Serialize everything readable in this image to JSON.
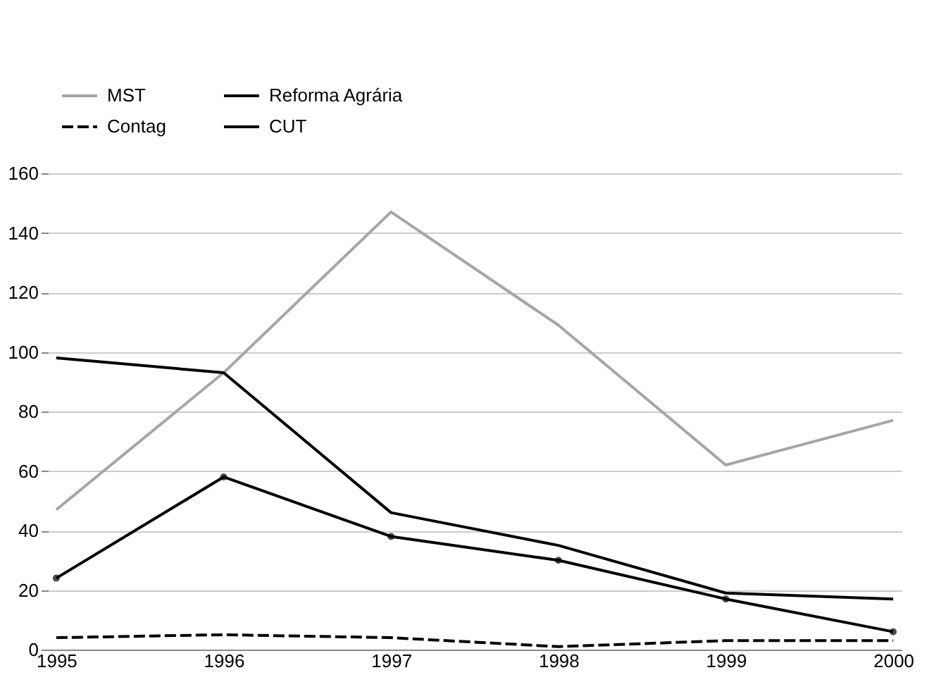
{
  "chart_data": {
    "type": "line",
    "categories": [
      "1995",
      "1996",
      "1997",
      "1998",
      "1999",
      "2000"
    ],
    "ylim": [
      0,
      160
    ],
    "yticks": [
      0,
      20,
      40,
      60,
      80,
      100,
      120,
      140,
      160
    ],
    "grid": "y",
    "legend": "top",
    "series": [
      {
        "name": "MST",
        "color": "#a6a6a6",
        "line_style": "solid",
        "marker": "none",
        "values": [
          47,
          93,
          147,
          109,
          62,
          77
        ]
      },
      {
        "name": "Reforma Agrária",
        "color": "#000000",
        "line_style": "solid",
        "marker": "circle",
        "values": [
          24,
          58,
          38,
          30,
          17,
          6
        ]
      },
      {
        "name": "Contag",
        "color": "#000000",
        "line_style": "dashed",
        "marker": "none",
        "values": [
          4,
          5,
          4,
          1,
          3,
          3
        ]
      },
      {
        "name": "CUT",
        "color": "#000000",
        "line_style": "solid",
        "marker": "none",
        "values": [
          98,
          93,
          46,
          35,
          19,
          17
        ]
      }
    ]
  }
}
